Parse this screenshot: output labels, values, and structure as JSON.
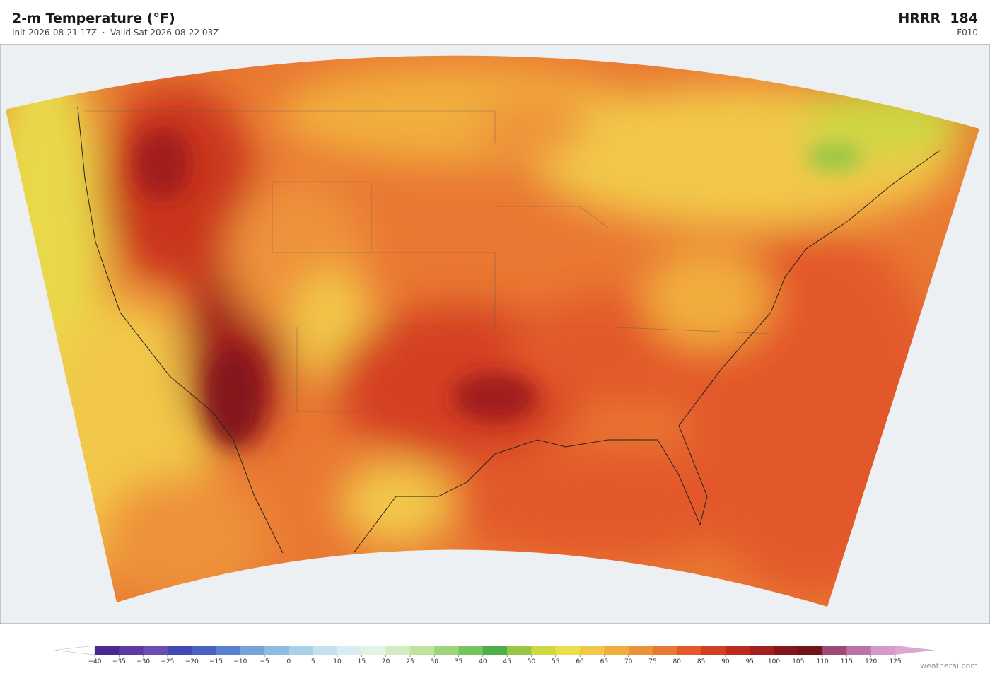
{
  "header": {
    "title": "2-m Temperature  (°F)",
    "subtitle": "Init 2026-08-21 17Z  ·  Valid Sat 2026-08-22 03Z",
    "model": "HRRR  184",
    "forecast_hour": "F010"
  },
  "colorbar": {
    "ticks": [
      {
        "value": -40,
        "label": "−40"
      },
      {
        "value": -35,
        "label": "−35"
      },
      {
        "value": -30,
        "label": "−30"
      },
      {
        "value": -25,
        "label": "−25"
      },
      {
        "value": -20,
        "label": "−20"
      },
      {
        "value": -15,
        "label": "−15"
      },
      {
        "value": -10,
        "label": "−10"
      },
      {
        "value": -5,
        "label": "−5"
      },
      0,
      5,
      10,
      15,
      20,
      25,
      30,
      35,
      40,
      45,
      50,
      55,
      60,
      65,
      70,
      75,
      80,
      85,
      90,
      95,
      100,
      105,
      110,
      115,
      120,
      125
    ],
    "colors": [
      "#4b2a8f",
      "#5e3a9e",
      "#6a4fb0",
      "#4148b8",
      "#4a5fc4",
      "#5a80cf",
      "#77a2d8",
      "#8fbbe0",
      "#a9d2e8",
      "#c3e2ee",
      "#d9eef2",
      "#e4f4e4",
      "#d4ecc0",
      "#bfe29c",
      "#9fd57a",
      "#76c45e",
      "#4dae4a",
      "#97c745",
      "#cdd842",
      "#ece04a",
      "#f2c84a",
      "#f1ae3e",
      "#ee923a",
      "#e97832",
      "#e3582c",
      "#d43f24",
      "#bd2b20",
      "#a11f1d",
      "#85171a",
      "#6e1516",
      "#9c4a75",
      "#ba72a8",
      "#d39acb"
    ],
    "under_color": "#ffffff",
    "over_color": "#dba8d3"
  },
  "footer": {
    "credit": "weatherai.com"
  }
}
